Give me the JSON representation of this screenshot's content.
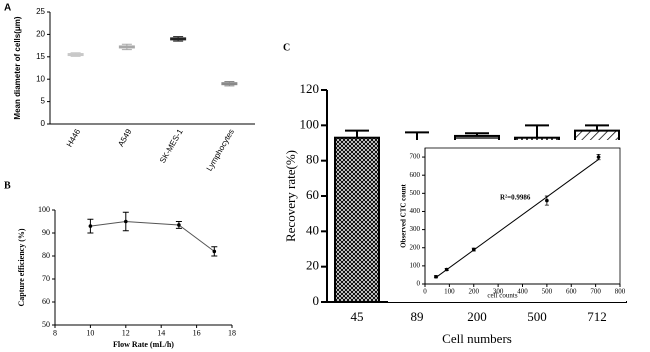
{
  "chart_data": [
    {
      "type": "dot",
      "panel": "A",
      "y_label": "Mean diameter of cells(μm)",
      "categories": [
        "H446",
        "A549",
        "SK-MES-1",
        "Lymphocytes"
      ],
      "values": [
        15.5,
        17.2,
        19,
        9
      ],
      "errors": [
        0.4,
        0.6,
        0.5,
        0.5
      ],
      "colors": [
        "#c8c8c8",
        "#a8a8a8",
        "#222222",
        "#8a8a8a"
      ],
      "ylim": [
        0,
        25
      ],
      "yticks": [
        0,
        5,
        10,
        15,
        20,
        25
      ]
    },
    {
      "type": "line",
      "panel": "B",
      "x_label": "Flow Rate (mL/h)",
      "y_label": "Capture efficiency (%)",
      "x": [
        10,
        12,
        15,
        17
      ],
      "values": [
        93,
        95,
        93.5,
        82
      ],
      "errors": [
        3,
        4,
        1.5,
        2
      ],
      "color": "#555555",
      "xlim": [
        8,
        18
      ],
      "xticks": [
        8,
        10,
        12,
        14,
        16,
        18
      ],
      "ylim": [
        50,
        100
      ],
      "yticks": [
        50,
        60,
        70,
        80,
        90,
        100
      ]
    },
    {
      "type": "bar",
      "panel": "C",
      "x_label": "Cell numbers",
      "y_label": "Recovery rate(%)",
      "categories": [
        "45",
        "89",
        "200",
        "500",
        "712"
      ],
      "values": [
        93,
        91,
        94,
        93,
        97
      ],
      "errors": [
        4,
        5,
        1.5,
        7,
        3
      ],
      "ylim": [
        0,
        120
      ],
      "yticks": [
        0,
        20,
        40,
        60,
        80,
        100,
        120
      ]
    },
    {
      "type": "scatter",
      "x_label": "cell counts",
      "y_label": "Observed  CTC count",
      "annotation": "R²=0.9986",
      "x": [
        45,
        89,
        200,
        500,
        712
      ],
      "values": [
        40,
        80,
        190,
        460,
        700
      ],
      "errors": [
        6,
        6,
        8,
        25,
        15
      ],
      "xlim": [
        0,
        800
      ],
      "xticks": [
        0,
        100,
        200,
        300,
        400,
        500,
        600,
        700,
        800
      ],
      "ylim": [
        0,
        750
      ],
      "yticks": [
        0,
        100,
        200,
        300,
        400,
        500,
        600,
        700
      ]
    }
  ]
}
